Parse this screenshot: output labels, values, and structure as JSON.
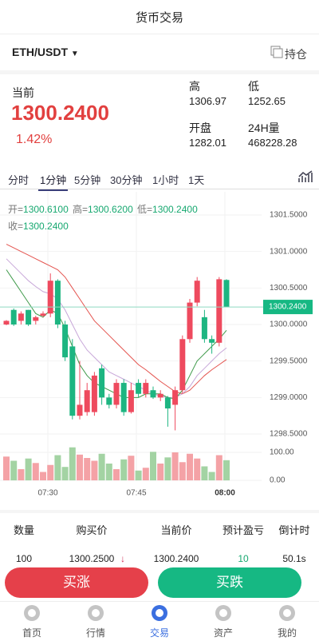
{
  "header": {
    "title": "货币交易"
  },
  "market": {
    "pair": "ETH/USDT",
    "position": "持仓",
    "current_label": "当前",
    "price": "1300.2400",
    "change": "1.42%",
    "stats": [
      {
        "label": "高",
        "value": "1306.97"
      },
      {
        "label": "低",
        "value": "1252.65"
      },
      {
        "label": "开盘",
        "value": "1282.01"
      },
      {
        "label": "24H量",
        "value": "468228.28"
      }
    ]
  },
  "tabs": {
    "items": [
      "分时",
      "1分钟",
      "5分钟",
      "30分钟",
      "1小时",
      "1天"
    ],
    "active": 1
  },
  "ohlc": [
    {
      "label": "开=",
      "value": "1300.6100"
    },
    {
      "label": "高=",
      "value": "1300.6200"
    },
    {
      "label": "低=",
      "value": "1300.2400"
    },
    {
      "label": "收=",
      "value": "1300.2400"
    }
  ],
  "kline": {
    "type": "candlestick",
    "up_color": "#ee4a5e",
    "down_color": "#1db581",
    "ylim": [
      1298.5,
      1301.5
    ],
    "yticks": [
      {
        "value": 1301.5,
        "label": "1301.5000"
      },
      {
        "value": 1301.0,
        "label": "1301.0000"
      },
      {
        "value": 1300.5,
        "label": "1300.5000"
      },
      {
        "value": 1300.0,
        "label": "1300.0000"
      },
      {
        "value": 1299.5,
        "label": "1299.5000"
      },
      {
        "value": 1299.0,
        "label": "1299.0000"
      },
      {
        "value": 1298.5,
        "label": "1298.5000"
      }
    ],
    "last": {
      "value": 1300.24,
      "label": "1300.2400"
    },
    "open": [
      1300.0,
      1300.2,
      1300.05,
      1300.2,
      1300.05,
      1300.12,
      1300.15,
      1300.6,
      1300.0,
      1299.7,
      1298.75,
      1298.8,
      1298.8,
      1299.4,
      1299.0,
      1298.9,
      1299.2,
      1298.8,
      1299.2,
      1299.05,
      1299.1,
      1299.0,
      1299.0,
      1298.9,
      1299.1,
      1299.8,
      1300.3,
      1300.1,
      1299.8,
      1299.75,
      1300.61
    ],
    "high": [
      1300.06,
      1300.22,
      1300.18,
      1300.2,
      1300.12,
      1300.18,
      1300.7,
      1300.62,
      1300.05,
      1299.8,
      1299.5,
      1299.2,
      1299.35,
      1299.45,
      1299.05,
      1299.25,
      1299.25,
      1299.2,
      1299.25,
      1299.25,
      1299.15,
      1299.1,
      1299.02,
      1299.15,
      1299.85,
      1300.35,
      1300.65,
      1300.2,
      1299.85,
      1300.65,
      1300.62
    ],
    "low": [
      1299.99,
      1299.98,
      1300.0,
      1299.98,
      1300.0,
      1300.1,
      1300.1,
      1299.95,
      1299.5,
      1298.7,
      1298.7,
      1298.75,
      1298.75,
      1298.9,
      1298.85,
      1298.85,
      1298.75,
      1298.78,
      1299.0,
      1299.0,
      1298.98,
      1298.95,
      1298.6,
      1298.55,
      1299.05,
      1299.75,
      1300.25,
      1299.75,
      1299.6,
      1299.7,
      1300.24
    ],
    "close": [
      1300.05,
      1300.0,
      1300.15,
      1300.0,
      1300.1,
      1300.15,
      1300.6,
      1300.0,
      1299.55,
      1298.75,
      1298.9,
      1299.1,
      1299.3,
      1299.0,
      1298.9,
      1299.2,
      1298.8,
      1299.1,
      1299.05,
      1299.2,
      1299.0,
      1299.05,
      1298.85,
      1299.1,
      1299.8,
      1300.3,
      1300.6,
      1299.8,
      1299.75,
      1300.62,
      1300.24
    ],
    "ma": [
      {
        "color": "#e4544f",
        "values": [
          1301.1,
          1301.05,
          1301.0,
          1300.95,
          1300.9,
          1300.85,
          1300.8,
          1300.75,
          1300.65,
          1300.5,
          1300.35,
          1300.2,
          1300.05,
          1299.95,
          1299.85,
          1299.75,
          1299.65,
          1299.55,
          1299.45,
          1299.38,
          1299.3,
          1299.22,
          1299.15,
          1299.08,
          1299.05,
          1299.1,
          1299.2,
          1299.3,
          1299.38,
          1299.45,
          1299.52
        ]
      },
      {
        "color": "#c7a6d8",
        "values": [
          1300.9,
          1300.8,
          1300.7,
          1300.6,
          1300.52,
          1300.45,
          1300.42,
          1300.35,
          1300.2,
          1300.0,
          1299.8,
          1299.65,
          1299.55,
          1299.45,
          1299.35,
          1299.3,
          1299.25,
          1299.2,
          1299.15,
          1299.1,
          1299.05,
          1299.02,
          1299.0,
          1299.0,
          1299.05,
          1299.15,
          1299.3,
          1299.4,
          1299.5,
          1299.6,
          1299.68
        ]
      },
      {
        "color": "#3f9a4a",
        "values": [
          1300.75,
          1300.6,
          1300.45,
          1300.3,
          1300.15,
          1300.1,
          1300.2,
          1300.15,
          1299.95,
          1299.7,
          1299.45,
          1299.3,
          1299.2,
          1299.15,
          1299.1,
          1299.05,
          1299.0,
          1299.0,
          1299.0,
          1299.05,
          1299.05,
          1299.05,
          1299.0,
          1298.98,
          1299.1,
          1299.3,
          1299.5,
          1299.6,
          1299.7,
          1299.8,
          1299.92
        ]
      }
    ],
    "volume": [
      85,
      70,
      40,
      78,
      62,
      30,
      55,
      90,
      48,
      118,
      92,
      80,
      70,
      95,
      60,
      40,
      75,
      88,
      35,
      45,
      102,
      60,
      82,
      100,
      65,
      95,
      78,
      50,
      30,
      90,
      72
    ],
    "vlim": [
      0,
      100
    ],
    "vticks": [
      {
        "value": 100,
        "label": "100.00"
      },
      {
        "value": 0,
        "label": "0.00"
      }
    ],
    "times": [
      "07:30",
      "07:45",
      "08:00"
    ]
  },
  "orders": {
    "columns": [
      "数量",
      "购买价",
      "当前价",
      "预计盈亏",
      "倒计时"
    ],
    "rows": [
      [
        "100",
        "1300.2500",
        "1300.2400",
        "10",
        "50.1s"
      ]
    ]
  },
  "actions": {
    "buy_up": "买涨",
    "buy_down": "买跌"
  },
  "nav": [
    "首页",
    "行情",
    "交易",
    "资产",
    "我的"
  ]
}
